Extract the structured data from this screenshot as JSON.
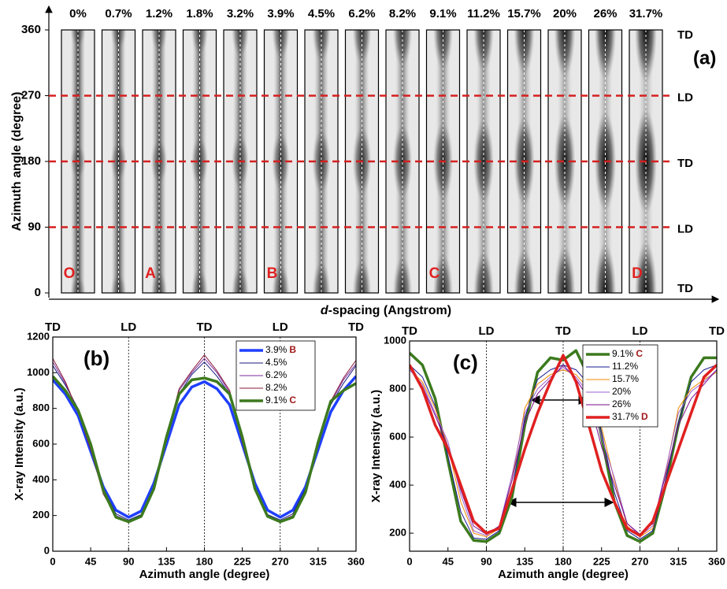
{
  "chart_data": [
    {
      "type": "image_strips",
      "panel_label": "(a)",
      "categories": [
        "0%",
        "0.7%",
        "1.2%",
        "1.8%",
        "3.2%",
        "3.9%",
        "4.5%",
        "6.2%",
        "8.2%",
        "9.1%",
        "11.2%",
        "15.7%",
        "20%",
        "26%",
        "31.7%"
      ],
      "markers": [
        "O",
        null,
        "A",
        null,
        null,
        "B",
        null,
        null,
        null,
        "C",
        null,
        null,
        null,
        null,
        "D"
      ],
      "ylabel": "Azimuth angle (degree)",
      "xlabel_var": "d",
      "xlabel": "-spacing (Angstrom)",
      "ylim": [
        0,
        360
      ],
      "yticks": [
        0,
        90,
        180,
        270,
        360
      ],
      "direction_labels": [
        {
          "value": 0,
          "label": "TD"
        },
        {
          "value": 90,
          "label": "LD"
        },
        {
          "value": 180,
          "label": "TD"
        },
        {
          "value": 270,
          "label": "LD"
        },
        {
          "value": 360,
          "label": "TD"
        }
      ],
      "ref_lines": [
        90,
        180,
        270
      ],
      "ref_color": "#d62020"
    },
    {
      "type": "line",
      "panel_label": "(b)",
      "xlabel": "Azimuth angle (degree)",
      "ylabel": "X-ray Intensity (a.u.)",
      "x": [
        0,
        15,
        30,
        45,
        60,
        75,
        90,
        105,
        120,
        135,
        150,
        165,
        180,
        195,
        210,
        225,
        240,
        255,
        270,
        285,
        300,
        315,
        330,
        345,
        360
      ],
      "xlim": [
        0,
        360
      ],
      "xticks": [
        0,
        45,
        90,
        135,
        180,
        225,
        270,
        315,
        360
      ],
      "ylim": [
        0,
        1200
      ],
      "yticks": [
        0,
        200,
        400,
        600,
        800,
        1000,
        1200
      ],
      "direction_labels": [
        {
          "value": 0,
          "label": "TD"
        },
        {
          "value": 90,
          "label": "LD"
        },
        {
          "value": 180,
          "label": "TD"
        },
        {
          "value": 270,
          "label": "LD"
        },
        {
          "value": 360,
          "label": "TD"
        }
      ],
      "ref_lines": [
        90,
        180,
        270
      ],
      "series": [
        {
          "name": "3.9%",
          "tag": "B",
          "color": "#1f3fff",
          "width": 3.5,
          "values": [
            960,
            880,
            760,
            560,
            360,
            230,
            190,
            225,
            380,
            600,
            820,
            920,
            950,
            910,
            820,
            600,
            380,
            230,
            190,
            230,
            360,
            570,
            780,
            900,
            980
          ]
        },
        {
          "name": "4.5%",
          "color": "#1a1a80",
          "width": 1,
          "values": [
            1040,
            930,
            800,
            600,
            350,
            210,
            175,
            205,
            360,
            620,
            880,
            990,
            1060,
            980,
            880,
            630,
            360,
            205,
            175,
            210,
            350,
            610,
            820,
            940,
            1040
          ]
        },
        {
          "name": "6.2%",
          "color": "#7a2a9a",
          "width": 1,
          "values": [
            1060,
            940,
            790,
            580,
            330,
            200,
            170,
            200,
            350,
            630,
            900,
            1000,
            1080,
            1000,
            890,
            620,
            350,
            200,
            170,
            200,
            340,
            600,
            830,
            960,
            1050
          ]
        },
        {
          "name": "8.2%",
          "color": "#8b1a3a",
          "width": 1,
          "values": [
            1080,
            950,
            780,
            570,
            320,
            195,
            168,
            198,
            340,
            640,
            910,
            1010,
            1100,
            1010,
            900,
            610,
            340,
            198,
            168,
            198,
            330,
            590,
            840,
            970,
            1070
          ]
        },
        {
          "name": "9.1%",
          "tag": "C",
          "color": "#3c7a1e",
          "width": 3.5,
          "values": [
            980,
            900,
            790,
            600,
            340,
            190,
            165,
            195,
            350,
            640,
            880,
            960,
            970,
            950,
            880,
            640,
            350,
            195,
            165,
            190,
            330,
            610,
            840,
            900,
            940
          ]
        }
      ],
      "tag_color": "#a01818"
    },
    {
      "type": "line",
      "panel_label": "(c)",
      "xlabel": "Azimuth angle (degree)",
      "ylabel": "X-ray Intensity (a.u.)",
      "x": [
        0,
        15,
        30,
        45,
        60,
        75,
        90,
        105,
        120,
        135,
        150,
        165,
        180,
        195,
        210,
        225,
        240,
        255,
        270,
        285,
        300,
        315,
        330,
        345,
        360
      ],
      "xlim": [
        0,
        360
      ],
      "xticks": [
        0,
        45,
        90,
        135,
        180,
        225,
        270,
        315,
        360
      ],
      "ylim": [
        125,
        1000
      ],
      "yticks": [
        200,
        400,
        600,
        800,
        1000
      ],
      "direction_labels": [
        {
          "value": 0,
          "label": "TD"
        },
        {
          "value": 90,
          "label": "LD"
        },
        {
          "value": 180,
          "label": "TD"
        },
        {
          "value": 270,
          "label": "LD"
        },
        {
          "value": 360,
          "label": "TD"
        }
      ],
      "ref_lines": [
        90,
        180,
        270
      ],
      "series": [
        {
          "name": "9.1%",
          "tag": "C",
          "color": "#3c7a1e",
          "width": 3.5,
          "values": [
            950,
            900,
            760,
            500,
            250,
            170,
            165,
            200,
            350,
            650,
            870,
            930,
            920,
            960,
            850,
            600,
            330,
            190,
            165,
            200,
            400,
            650,
            850,
            930,
            930
          ]
        },
        {
          "name": "11.2%",
          "color": "#1a1a90",
          "width": 1,
          "values": [
            900,
            850,
            730,
            520,
            290,
            180,
            175,
            210,
            380,
            680,
            840,
            880,
            900,
            880,
            820,
            620,
            370,
            210,
            175,
            210,
            420,
            660,
            830,
            880,
            900
          ]
        },
        {
          "name": "15.7%",
          "color": "#f08a00",
          "width": 1,
          "values": [
            880,
            830,
            720,
            560,
            330,
            200,
            185,
            220,
            420,
            720,
            820,
            860,
            880,
            860,
            800,
            640,
            420,
            230,
            185,
            220,
            450,
            720,
            800,
            840,
            870
          ]
        },
        {
          "name": "20%",
          "color": "#9b5fd0",
          "width": 1,
          "values": [
            880,
            820,
            700,
            580,
            360,
            210,
            190,
            230,
            440,
            700,
            800,
            850,
            890,
            850,
            780,
            600,
            430,
            240,
            190,
            230,
            460,
            700,
            790,
            830,
            880
          ]
        },
        {
          "name": "26%",
          "color": "#7a0a8a",
          "width": 1,
          "values": [
            890,
            810,
            690,
            560,
            380,
            230,
            195,
            230,
            420,
            660,
            780,
            840,
            900,
            840,
            760,
            560,
            400,
            240,
            195,
            240,
            440,
            650,
            760,
            820,
            880
          ]
        },
        {
          "name": "31.7%",
          "tag": "D",
          "color": "#e02020",
          "width": 3.5,
          "values": [
            900,
            800,
            650,
            550,
            400,
            250,
            200,
            220,
            380,
            550,
            700,
            830,
            940,
            830,
            650,
            460,
            330,
            220,
            190,
            250,
            400,
            550,
            700,
            850,
            900
          ]
        }
      ],
      "tag_color": "#a01818"
    }
  ]
}
